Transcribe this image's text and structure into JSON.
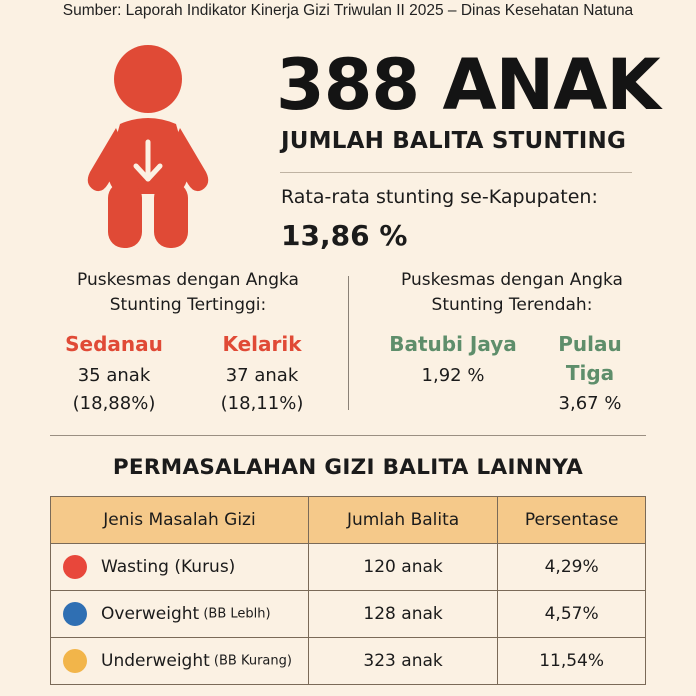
{
  "source": "Sumber: Laporah Indikator Kinerja Gizi Triwulan II 2025 – Dinas Kesehatan Natuna",
  "icon": {
    "name": "baby-stunting-icon",
    "color": "#e04a36"
  },
  "headline": {
    "number": "388 ANAK",
    "subtitle": "JUMLAH BALITA STUNTING"
  },
  "average": {
    "label": "Rata-rata stunting se-Kapupaten:",
    "value": "13,86 %"
  },
  "highest": {
    "heading_line1": "Puskesmas dengan Angka",
    "heading_line2": "Stunting Tertinggi:",
    "color": "#e04a36",
    "items": [
      {
        "name": "Sedanau",
        "count": "35 anak",
        "percent": "(18,88%)"
      },
      {
        "name": "Kelarik",
        "count": "37 anak",
        "percent": "(18,11%)"
      }
    ]
  },
  "lowest": {
    "heading_line1": "Puskesmas dengan Angka",
    "heading_line2": "Stunting Terendah:",
    "color": "#5e8e6b",
    "items": [
      {
        "name": "Batubi Jaya",
        "percent": "1,92 %"
      },
      {
        "name_line1": "Pulau",
        "name_line2": "Tiga",
        "percent": "3,67 %"
      }
    ]
  },
  "other_problems": {
    "title": "PERMASALAHAN GIZI BALITA LAINNYA",
    "headers": [
      "Jenis Masalah Gizi",
      "Jumlah Balita",
      "Persentase"
    ],
    "rows": [
      {
        "dot_color": "#e8473b",
        "label": "Wasting",
        "label_suffix": " (Kurus)",
        "count": "120 anak",
        "percent": "4,29%"
      },
      {
        "dot_color": "#2f6fb3",
        "label": "Overweight",
        "label_suffix": " (BB Leblh)",
        "count": "128 anak",
        "percent": "4,57%"
      },
      {
        "dot_color": "#f2b54a",
        "label": "Underweight",
        "label_suffix": " (BB Kurang)",
        "count": "323 anak",
        "percent": "11,54%"
      }
    ]
  }
}
